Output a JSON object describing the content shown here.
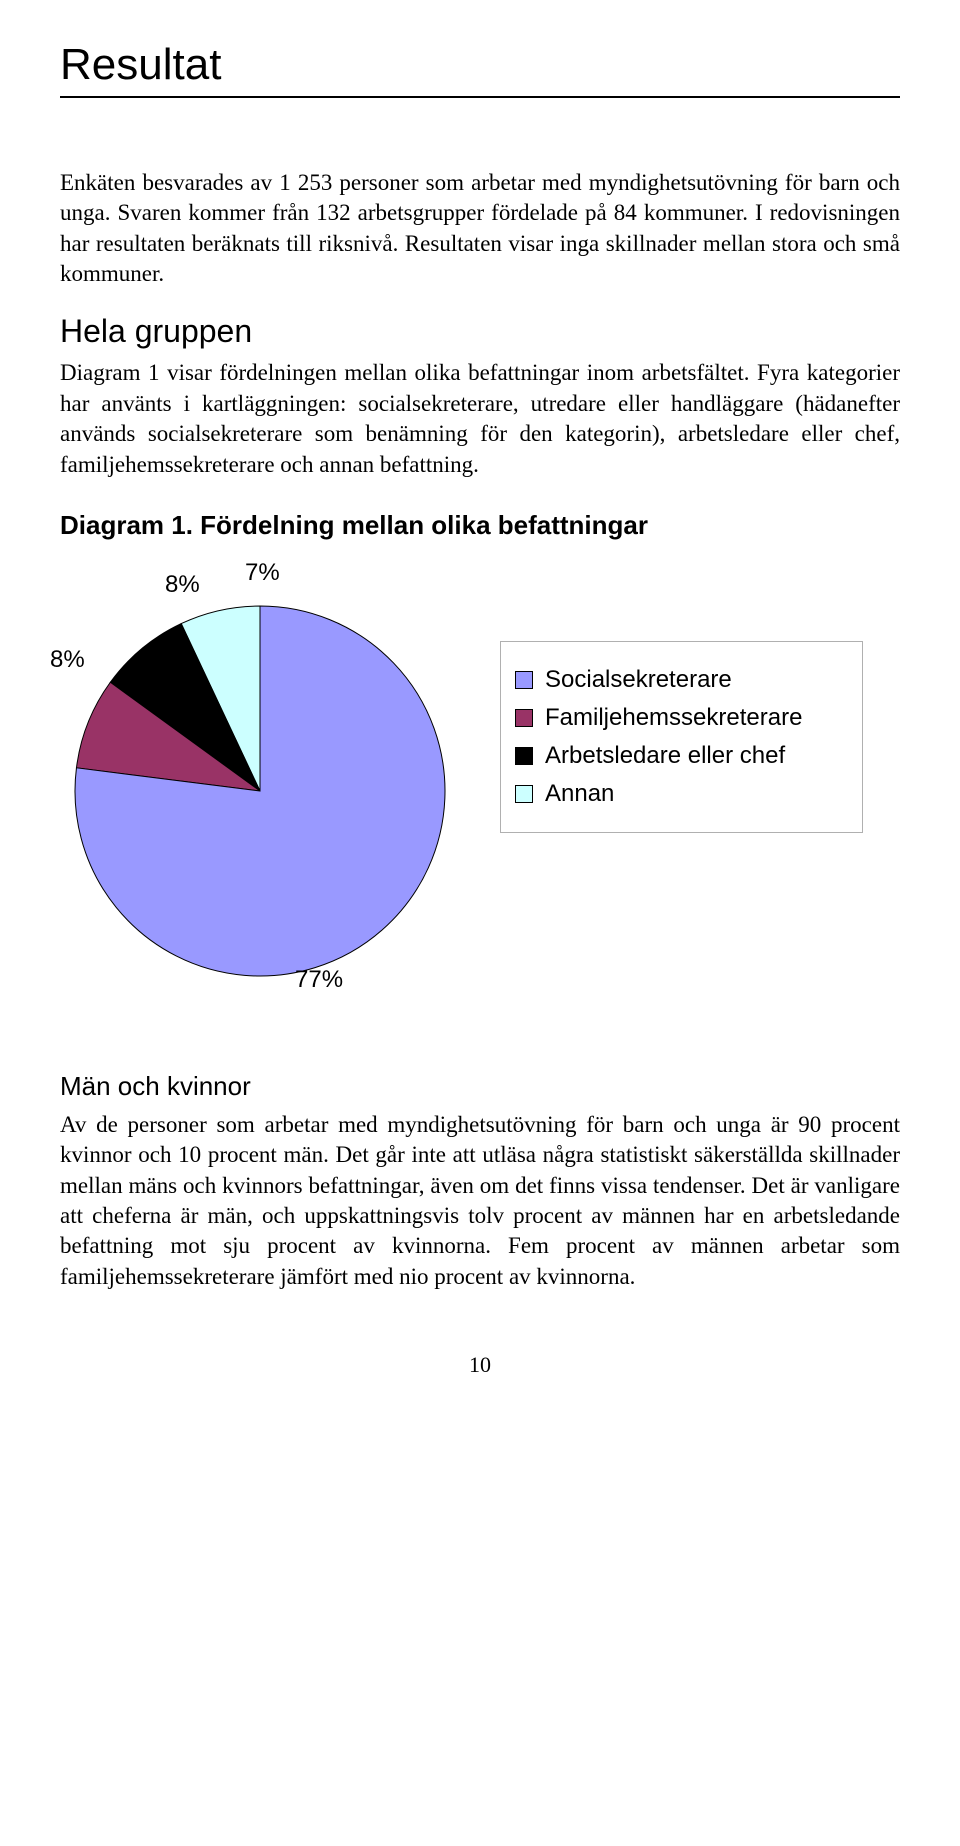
{
  "title": "Resultat",
  "para1": "Enkäten besvarades av 1 253 personer som arbetar med myndighetsutövning för barn och unga. Svaren kommer från 132 arbetsgrupper fördelade på 84 kommuner. I redovisningen har resultaten beräknats till riksnivå.     Resultaten visar inga skillnader mellan stora och små kommuner.",
  "section1_heading": "Hela gruppen",
  "section1_body": "Diagram 1 visar fördelningen mellan olika befattningar inom arbetsfältet. Fyra kategorier har använts i kartläggningen: socialsekreterare, utredare eller handläggare (hädanefter används socialsekreterare som benämning för den kategorin), arbetsledare eller chef, familjehemssekreterare och annan befattning.",
  "chart": {
    "title": "Diagram 1.  Fördelning mellan olika befattningar",
    "type": "pie",
    "radius": 185,
    "stroke_color": "#000000",
    "stroke_width": 1,
    "slices": [
      {
        "label": "Socialsekreterare",
        "value": 77,
        "color": "#9999ff",
        "pct_label": "77%"
      },
      {
        "label": "Familjehemssekreterare",
        "value": 8,
        "color": "#993366",
        "pct_label": "8%"
      },
      {
        "label": "Arbetsledare eller chef",
        "value": 8,
        "color": "#000000",
        "pct_label": "8%"
      },
      {
        "label": "Annan",
        "value": 7,
        "color": "#ccffff",
        "pct_label": "7%"
      }
    ],
    "label_font": "Arial",
    "label_fontsize": 24,
    "legend_border_color": "#b0b0b0"
  },
  "section2_heading": "Män och kvinnor",
  "section2_body": "Av de personer som arbetar med myndighetsutövning för barn och unga är 90 procent kvinnor och 10 procent män. Det går inte att utläsa några statistiskt säkerställda skillnader mellan mäns och kvinnors befattningar, även om det finns vissa tendenser. Det är vanligare att cheferna är män, och uppskattningsvis tolv procent av männen har en arbetsledande befattning mot sju procent av kvinnorna. Fem procent av männen arbetar som familjehemssekreterare jämfört med nio procent av kvinnorna.",
  "page_number": "10"
}
